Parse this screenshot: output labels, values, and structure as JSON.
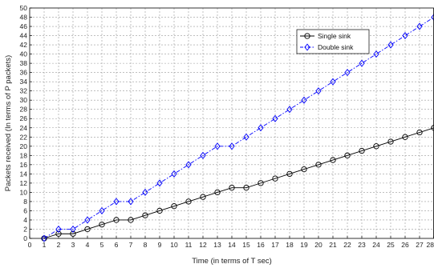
{
  "chart_data": {
    "type": "line",
    "xlabel": "Time (in terms of T sec)",
    "ylabel": "Packets received (In terms of P packets)",
    "xlim": [
      0,
      28
    ],
    "ylim": [
      0,
      50
    ],
    "xticks": [
      0,
      1,
      2,
      3,
      4,
      5,
      6,
      7,
      8,
      9,
      10,
      11,
      12,
      13,
      14,
      15,
      16,
      17,
      18,
      19,
      20,
      21,
      22,
      23,
      24,
      25,
      26,
      27,
      28
    ],
    "yticks": [
      0,
      2,
      4,
      6,
      8,
      10,
      12,
      14,
      16,
      18,
      20,
      22,
      24,
      26,
      28,
      30,
      32,
      34,
      36,
      38,
      40,
      42,
      44,
      46,
      48,
      50
    ],
    "grid": true,
    "legend_position": "top-right",
    "x": [
      1,
      2,
      3,
      4,
      5,
      6,
      7,
      8,
      9,
      10,
      11,
      12,
      13,
      14,
      15,
      16,
      17,
      18,
      19,
      20,
      21,
      22,
      23,
      24,
      25,
      26,
      27,
      28
    ],
    "series": [
      {
        "name": "Single sink",
        "color": "#000000",
        "marker": "circle",
        "line_style": "solid",
        "values": [
          0,
          1,
          1,
          2,
          3,
          4,
          4,
          5,
          6,
          7,
          8,
          9,
          10,
          11,
          11,
          12,
          13,
          14,
          15,
          16,
          17,
          18,
          19,
          20,
          21,
          22,
          23,
          24
        ]
      },
      {
        "name": "Double sink",
        "color": "#0000ff",
        "marker": "diamond",
        "line_style": "dash-dot",
        "values": [
          0,
          2,
          2,
          4,
          6,
          8,
          8,
          10,
          12,
          14,
          16,
          18,
          20,
          20,
          22,
          24,
          26,
          28,
          30,
          32,
          34,
          36,
          38,
          40,
          42,
          44,
          46,
          48
        ]
      }
    ]
  }
}
